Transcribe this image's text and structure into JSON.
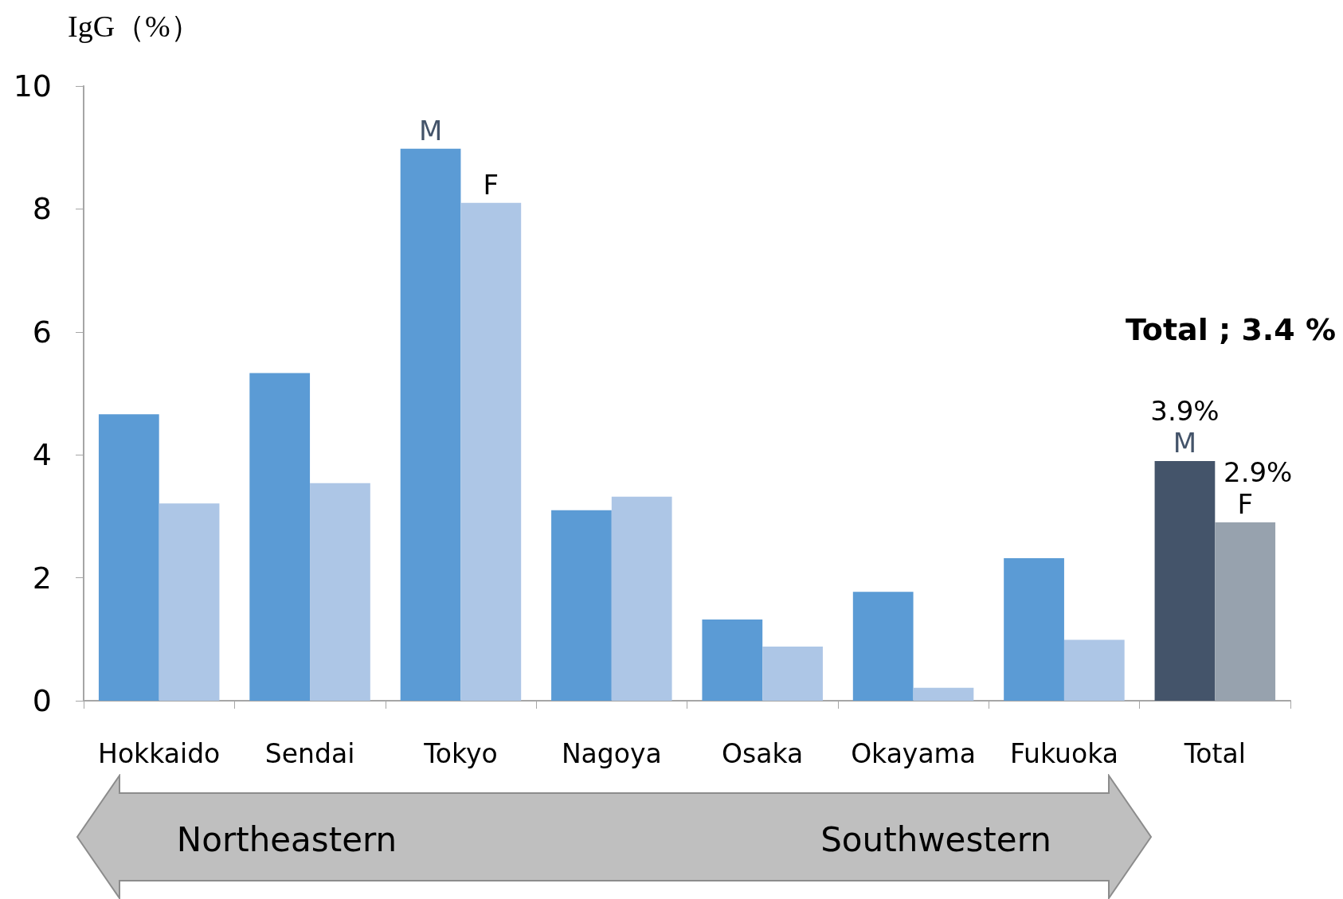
{
  "chart_data": {
    "type": "bar",
    "ylabel": "IgG（%）",
    "categories": [
      "Hokkaido",
      "Sendai",
      "Tokyo",
      "Nagoya",
      "Osaka",
      "Okayama",
      "Fukuoka",
      "Total"
    ],
    "series": [
      {
        "colors": [
          "#5b9bd5",
          "#5b9bd5",
          "#5b9bd5",
          "#5b9bd5",
          "#5b9bd5",
          "#5b9bd5",
          "#5b9bd5",
          "#44546a"
        ],
        "values": [
          4.66,
          5.33,
          8.98,
          3.1,
          1.32,
          1.77,
          2.32,
          3.9
        ],
        "value_labels": [
          null,
          null,
          null,
          null,
          null,
          null,
          null,
          "3.9%"
        ]
      },
      {
        "colors": [
          "#adc6e6",
          "#adc6e6",
          "#adc6e6",
          "#adc6e6",
          "#adc6e6",
          "#adc6e6",
          "#adc6e6",
          "#97a2ae"
        ],
        "values": [
          3.21,
          3.54,
          8.1,
          3.32,
          0.88,
          0.21,
          0.99,
          2.9
        ],
        "value_labels": [
          null,
          null,
          null,
          null,
          null,
          null,
          null,
          "2.9%"
        ]
      }
    ],
    "ylim": [
      0,
      10
    ],
    "yticks": [
      0,
      2,
      4,
      6,
      8,
      10
    ],
    "grid": false,
    "annotations": [
      "Total ; 3.4 %",
      "Northeastern",
      "Southwestern",
      {
        "text": "M",
        "x": "Tokyo",
        "y": 8.98
      },
      {
        "text": "F",
        "x": "Tokyo",
        "y": 8.1
      },
      {
        "text": "M",
        "x": "Total",
        "y": 3.9
      },
      {
        "text": "F",
        "x": "Total",
        "y": 2.9
      }
    ]
  }
}
